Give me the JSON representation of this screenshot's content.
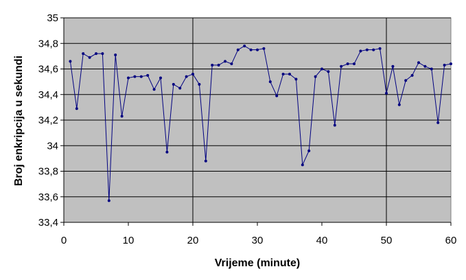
{
  "chart_data": {
    "type": "line",
    "xlabel": "Vrijeme (minute)",
    "ylabel": "Broj enkripcija u sekundi",
    "xlim": [
      0,
      60
    ],
    "ylim": [
      33.4,
      35
    ],
    "x_ticks": [
      "0",
      "10",
      "20",
      "30",
      "40",
      "50",
      "60"
    ],
    "y_ticks": [
      "33,4",
      "33,6",
      "33,8",
      "34",
      "34,2",
      "34,4",
      "34,6",
      "34,8",
      "35"
    ],
    "grid": {
      "horizontal": true,
      "vertical": true,
      "vertical_step": 30,
      "vertical_offset": 20
    },
    "colors": {
      "plot_background": "#c0c0c0",
      "series": "#000080",
      "grid": "#000000"
    },
    "series": [
      {
        "x": [
          1,
          2,
          3,
          4,
          5,
          6,
          7,
          8,
          9,
          10,
          11,
          12,
          13,
          14,
          15,
          16,
          17,
          18,
          19,
          20,
          21,
          22,
          23,
          24,
          25,
          26,
          27,
          28,
          29,
          30,
          31,
          32,
          33,
          34,
          35,
          36,
          37,
          38,
          39,
          40,
          41,
          42,
          43,
          44,
          45,
          46,
          47,
          48,
          49,
          50,
          51,
          52,
          53,
          54,
          55,
          56,
          57,
          58,
          59,
          60
        ],
        "values": [
          34.66,
          34.29,
          34.72,
          34.69,
          34.72,
          34.72,
          33.57,
          34.71,
          34.23,
          34.53,
          34.54,
          34.54,
          34.55,
          34.44,
          34.53,
          33.95,
          34.48,
          34.45,
          34.54,
          34.56,
          34.48,
          33.88,
          34.63,
          34.63,
          34.66,
          34.64,
          34.75,
          34.78,
          34.75,
          34.75,
          34.76,
          34.5,
          34.39,
          34.56,
          34.56,
          34.52,
          33.85,
          33.96,
          34.54,
          34.6,
          34.58,
          34.16,
          34.62,
          34.64,
          34.64,
          34.74,
          34.75,
          34.75,
          34.76,
          34.41,
          34.62,
          34.32,
          34.51,
          34.55,
          34.65,
          34.62,
          34.6,
          34.18,
          34.63,
          34.64
        ]
      }
    ]
  }
}
